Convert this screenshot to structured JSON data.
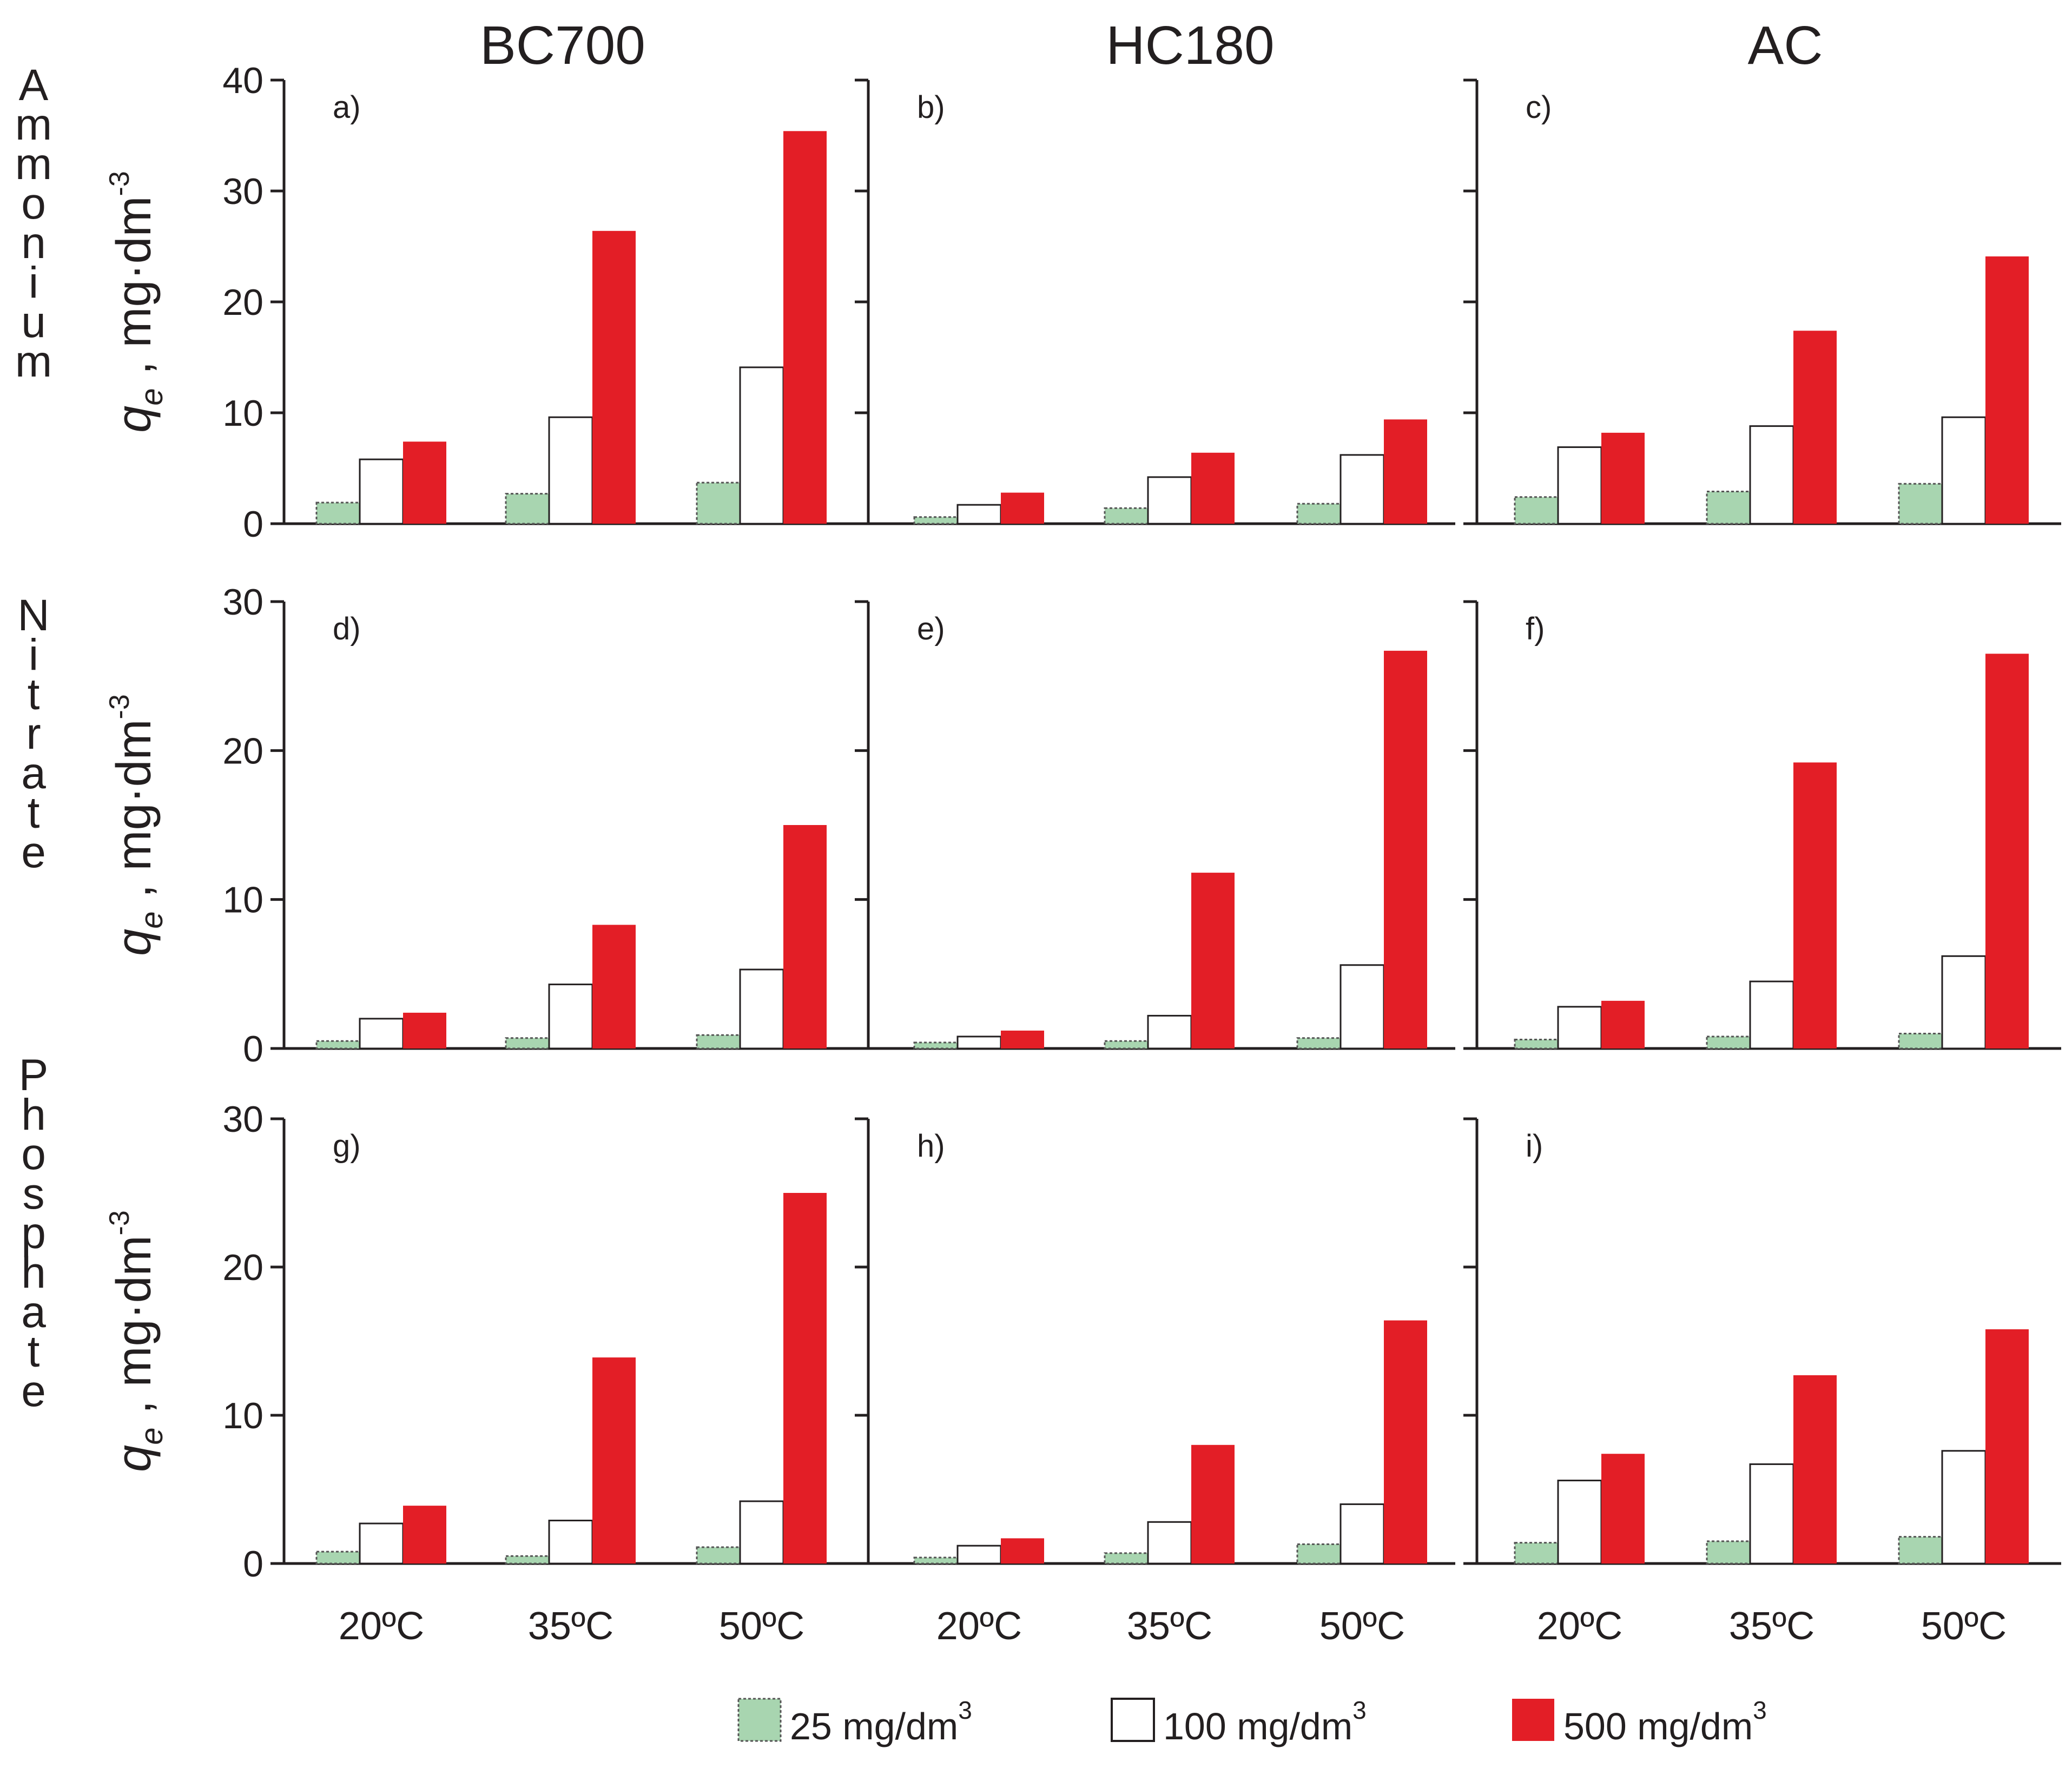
{
  "columns": [
    "BC700",
    "HC180",
    "AC"
  ],
  "row_labels": [
    "Ammonium",
    "Nitrate",
    "Phosphate"
  ],
  "y_axis_label": {
    "main": "q",
    "sub": "e",
    "unit": ", mg·dm",
    "exp": "-3"
  },
  "x_categories": [
    "20ºC",
    "35ºC",
    "50ºC"
  ],
  "legend": [
    {
      "label": "25 mg/dm",
      "exp": "3",
      "color": "#a8d5b0",
      "style": "dotted-border"
    },
    {
      "label": "100 mg/dm",
      "exp": "3",
      "color": "#ffffff",
      "style": "solid-border"
    },
    {
      "label": "500 mg/dm",
      "exp": "3",
      "color": "#e31e26",
      "style": "filled"
    }
  ],
  "colors": {
    "s25": "#a8d5b0",
    "s100": "#ffffff",
    "s500": "#e31e26",
    "axis": "#231f20"
  },
  "chart_data": [
    {
      "type": "bar",
      "panel": "a)",
      "row": "Ammonium",
      "column": "BC700",
      "categories": [
        "20ºC",
        "35ºC",
        "50ºC"
      ],
      "ylim": [
        0,
        40
      ],
      "yticks": [
        0,
        10,
        20,
        30,
        40
      ],
      "series": [
        {
          "name": "25 mg/dm3",
          "values": [
            1.9,
            2.7,
            3.7
          ]
        },
        {
          "name": "100 mg/dm3",
          "values": [
            5.8,
            9.6,
            14.1
          ]
        },
        {
          "name": "500 mg/dm3",
          "values": [
            7.4,
            26.4,
            35.4
          ]
        }
      ]
    },
    {
      "type": "bar",
      "panel": "b)",
      "row": "Ammonium",
      "column": "HC180",
      "categories": [
        "20ºC",
        "35ºC",
        "50ºC"
      ],
      "ylim": [
        0,
        40
      ],
      "yticks": [
        0,
        10,
        20,
        30,
        40
      ],
      "series": [
        {
          "name": "25 mg/dm3",
          "values": [
            0.6,
            1.4,
            1.8
          ]
        },
        {
          "name": "100 mg/dm3",
          "values": [
            1.7,
            4.2,
            6.2
          ]
        },
        {
          "name": "500 mg/dm3",
          "values": [
            2.8,
            6.4,
            9.4
          ]
        }
      ]
    },
    {
      "type": "bar",
      "panel": "c)",
      "row": "Ammonium",
      "column": "AC",
      "categories": [
        "20ºC",
        "35ºC",
        "50ºC"
      ],
      "ylim": [
        0,
        40
      ],
      "yticks": [
        0,
        10,
        20,
        30,
        40
      ],
      "series": [
        {
          "name": "25 mg/dm3",
          "values": [
            2.4,
            2.9,
            3.6
          ]
        },
        {
          "name": "100 mg/dm3",
          "values": [
            6.9,
            8.8,
            9.6
          ]
        },
        {
          "name": "500 mg/dm3",
          "values": [
            8.2,
            17.4,
            24.1
          ]
        }
      ]
    },
    {
      "type": "bar",
      "panel": "d)",
      "row": "Nitrate",
      "column": "BC700",
      "categories": [
        "20ºC",
        "35ºC",
        "50ºC"
      ],
      "ylim": [
        0,
        30
      ],
      "yticks": [
        0,
        10,
        20,
        30
      ],
      "series": [
        {
          "name": "25 mg/dm3",
          "values": [
            0.5,
            0.7,
            0.9
          ]
        },
        {
          "name": "100 mg/dm3",
          "values": [
            2.0,
            4.3,
            5.3
          ]
        },
        {
          "name": "500 mg/dm3",
          "values": [
            2.4,
            8.3,
            15.0
          ]
        }
      ]
    },
    {
      "type": "bar",
      "panel": "e)",
      "row": "Nitrate",
      "column": "HC180",
      "categories": [
        "20ºC",
        "35ºC",
        "50ºC"
      ],
      "ylim": [
        0,
        30
      ],
      "yticks": [
        0,
        10,
        20,
        30
      ],
      "series": [
        {
          "name": "25 mg/dm3",
          "values": [
            0.4,
            0.5,
            0.7
          ]
        },
        {
          "name": "100 mg/dm3",
          "values": [
            0.8,
            2.2,
            5.6
          ]
        },
        {
          "name": "500 mg/dm3",
          "values": [
            1.2,
            11.8,
            26.7
          ]
        }
      ]
    },
    {
      "type": "bar",
      "panel": "f)",
      "row": "Nitrate",
      "column": "AC",
      "categories": [
        "20ºC",
        "35ºC",
        "50ºC"
      ],
      "ylim": [
        0,
        30
      ],
      "yticks": [
        0,
        10,
        20,
        30
      ],
      "series": [
        {
          "name": "25 mg/dm3",
          "values": [
            0.6,
            0.8,
            1.0
          ]
        },
        {
          "name": "100 mg/dm3",
          "values": [
            2.8,
            4.5,
            6.2
          ]
        },
        {
          "name": "500 mg/dm3",
          "values": [
            3.2,
            19.2,
            26.5
          ]
        }
      ]
    },
    {
      "type": "bar",
      "panel": "g)",
      "row": "Phosphate",
      "column": "BC700",
      "categories": [
        "20ºC",
        "35ºC",
        "50ºC"
      ],
      "ylim": [
        0,
        30
      ],
      "yticks": [
        0,
        10,
        20,
        30
      ],
      "series": [
        {
          "name": "25 mg/dm3",
          "values": [
            0.8,
            0.5,
            1.1
          ]
        },
        {
          "name": "100 mg/dm3",
          "values": [
            2.7,
            2.9,
            4.2
          ]
        },
        {
          "name": "500 mg/dm3",
          "values": [
            3.9,
            13.9,
            25.0
          ]
        }
      ]
    },
    {
      "type": "bar",
      "panel": "h)",
      "row": "Phosphate",
      "column": "HC180",
      "categories": [
        "20ºC",
        "35ºC",
        "50ºC"
      ],
      "ylim": [
        0,
        30
      ],
      "yticks": [
        0,
        10,
        20,
        30
      ],
      "series": [
        {
          "name": "25 mg/dm3",
          "values": [
            0.4,
            0.7,
            1.3
          ]
        },
        {
          "name": "100 mg/dm3",
          "values": [
            1.2,
            2.8,
            4.0
          ]
        },
        {
          "name": "500 mg/dm3",
          "values": [
            1.7,
            8.0,
            16.4
          ]
        }
      ]
    },
    {
      "type": "bar",
      "panel": "i)",
      "row": "Phosphate",
      "column": "AC",
      "categories": [
        "20ºC",
        "35ºC",
        "50ºC"
      ],
      "ylim": [
        0,
        30
      ],
      "yticks": [
        0,
        10,
        20,
        30
      ],
      "series": [
        {
          "name": "25 mg/dm3",
          "values": [
            1.4,
            1.5,
            1.8
          ]
        },
        {
          "name": "100 mg/dm3",
          "values": [
            5.6,
            6.7,
            7.6
          ]
        },
        {
          "name": "500 mg/dm3",
          "values": [
            7.4,
            12.7,
            15.8
          ]
        }
      ]
    }
  ]
}
